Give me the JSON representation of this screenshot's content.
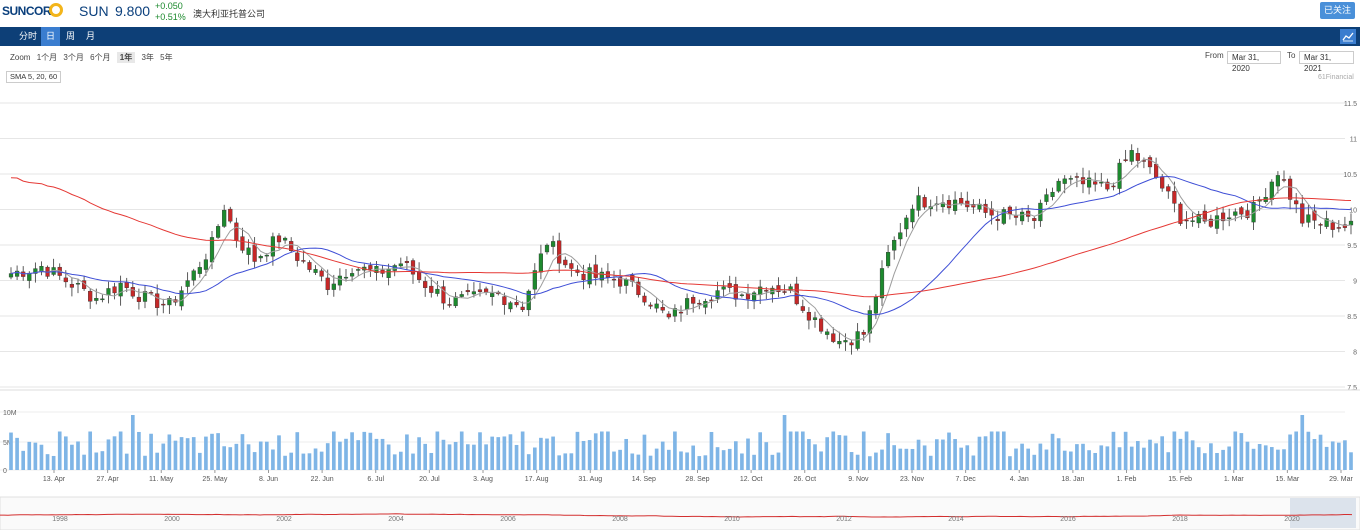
{
  "header": {
    "logo_text": "SUNCORP",
    "ticker": "SUN",
    "price": "9.800",
    "change_abs": "+0.050",
    "change_pct": "+0.51%",
    "company_name": "澳大利亚托普公司",
    "follow_label": "已关注"
  },
  "nav": {
    "tabs": [
      {
        "label": "分时",
        "active": false
      },
      {
        "label": "日",
        "active": true
      },
      {
        "label": "周",
        "active": false
      },
      {
        "label": "月",
        "active": false
      }
    ],
    "chart_icon": "line-chart-icon"
  },
  "zoom": {
    "label": "Zoom",
    "options": [
      "1个月",
      "3个月",
      "6个月",
      "1年",
      "3年",
      "5年"
    ],
    "selected": "1年"
  },
  "range": {
    "from_label": "From",
    "from_value": "Mar 31, 2020",
    "to_label": "To",
    "to_value": "Mar 31, 2021"
  },
  "indicator_label": "SMA 5, 20, 60",
  "credit": "61Financial",
  "colors": {
    "up": "#1d8a2e",
    "down": "#c62828",
    "sma5": "#9e9e9e",
    "sma20": "#3f4fd6",
    "sma60": "#e53935",
    "volume": "#7fb5e6",
    "nav": "#0d3f77"
  },
  "chart_data": {
    "type": "candlestick",
    "price_axis": {
      "ticks": [
        "11.5",
        "11",
        "10.5",
        "10",
        "9.5",
        "9",
        "8.5",
        "8",
        "7.5"
      ],
      "ylim": [
        7.5,
        11.5
      ]
    },
    "volume_axis": {
      "ticks": [
        "10M",
        "5M",
        "0"
      ]
    },
    "x_ticks": [
      "13. Apr",
      "27. Apr",
      "11. May",
      "25. May",
      "8. Jun",
      "22. Jun",
      "6. Jul",
      "20. Jul",
      "3. Aug",
      "17. Aug",
      "31. Aug",
      "14. Sep",
      "28. Sep",
      "12. Oct",
      "26. Oct",
      "9. Nov",
      "23. Nov",
      "7. Dec",
      "4. Jan",
      "18. Jan",
      "1. Feb",
      "15. Feb",
      "1. Mar",
      "15. Mar",
      "29. Mar"
    ],
    "close_anchors": [
      [
        0,
        9.1
      ],
      [
        5,
        9.2
      ],
      [
        10,
        8.95
      ],
      [
        14,
        8.75
      ],
      [
        18,
        8.95
      ],
      [
        22,
        8.75
      ],
      [
        26,
        8.65
      ],
      [
        30,
        9.1
      ],
      [
        33,
        9.5
      ],
      [
        35,
        10.05
      ],
      [
        37,
        9.6
      ],
      [
        40,
        9.3
      ],
      [
        44,
        9.6
      ],
      [
        48,
        9.25
      ],
      [
        52,
        8.95
      ],
      [
        56,
        9.2
      ],
      [
        60,
        9.1
      ],
      [
        64,
        9.25
      ],
      [
        68,
        8.95
      ],
      [
        72,
        8.7
      ],
      [
        76,
        8.75
      ],
      [
        80,
        8.8
      ],
      [
        84,
        8.65
      ],
      [
        88,
        9.55
      ],
      [
        92,
        9.15
      ],
      [
        96,
        9.05
      ],
      [
        100,
        9.0
      ],
      [
        104,
        8.8
      ],
      [
        108,
        8.45
      ],
      [
        112,
        8.75
      ],
      [
        116,
        8.85
      ],
      [
        120,
        8.8
      ],
      [
        124,
        8.95
      ],
      [
        128,
        8.85
      ],
      [
        132,
        8.45
      ],
      [
        136,
        8.15
      ],
      [
        140,
        8.25
      ],
      [
        144,
        9.35
      ],
      [
        148,
        10.1
      ],
      [
        152,
        10.15
      ],
      [
        156,
        10.1
      ],
      [
        160,
        9.95
      ],
      [
        164,
        9.9
      ],
      [
        168,
        9.85
      ],
      [
        172,
        10.4
      ],
      [
        176,
        10.35
      ],
      [
        180,
        10.3
      ],
      [
        184,
        10.8
      ],
      [
        188,
        10.45
      ],
      [
        192,
        9.9
      ],
      [
        196,
        9.8
      ],
      [
        200,
        9.95
      ],
      [
        204,
        10.0
      ],
      [
        208,
        10.55
      ],
      [
        212,
        9.85
      ],
      [
        216,
        9.8
      ],
      [
        220,
        9.75
      ]
    ],
    "volume_seed": 7,
    "sma_periods": [
      5,
      20,
      60
    ],
    "navigator_years": [
      "1998",
      "2000",
      "2002",
      "2004",
      "2006",
      "2008",
      "2010",
      "2012",
      "2014",
      "2016",
      "2018",
      "2020"
    ]
  }
}
